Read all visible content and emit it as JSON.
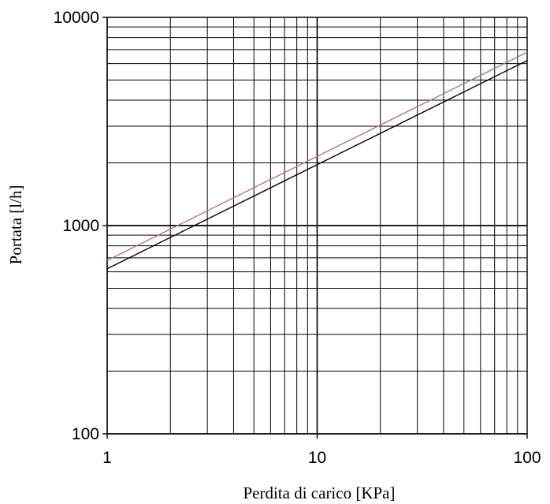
{
  "chart_data": {
    "type": "line",
    "title": "",
    "xlabel": "Perdita di carico [KPa]",
    "ylabel": "Portata [l/h]",
    "x_scale": "log",
    "y_scale": "log",
    "xlim": [
      1,
      100
    ],
    "ylim": [
      100,
      10000
    ],
    "x_tick_labels": [
      "1",
      "10",
      "100"
    ],
    "y_tick_labels": [
      "10000",
      "1000",
      "100"
    ],
    "grid": true,
    "series": [
      {
        "x": [
          1,
          10,
          100
        ],
        "y": [
          680,
          2150,
          6800
        ],
        "color": "#b07a7a"
      },
      {
        "x": [
          1,
          10,
          100
        ],
        "y": [
          620,
          1960,
          6200
        ],
        "color": "#000000"
      }
    ]
  }
}
